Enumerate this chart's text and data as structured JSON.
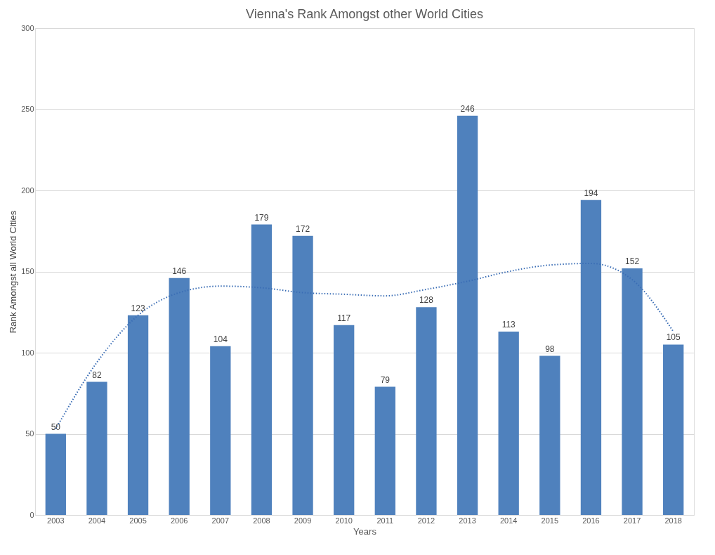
{
  "chart_data": {
    "type": "bar",
    "title": "Vienna's Rank Amongst other World Cities",
    "xlabel": "Years",
    "ylabel": "Rank Amongst all World Cities",
    "categories": [
      "2003",
      "2004",
      "2005",
      "2006",
      "2007",
      "2008",
      "2009",
      "2010",
      "2011",
      "2012",
      "2013",
      "2014",
      "2015",
      "2016",
      "2017",
      "2018"
    ],
    "series": [
      {
        "color": "#4f81bd",
        "values": [
          50,
          82,
          123,
          146,
          104,
          179,
          172,
          117,
          79,
          128,
          246,
          113,
          98,
          194,
          152,
          105
        ],
        "value_labels": [
          "50",
          "82",
          "123",
          "146",
          "104",
          "179",
          "172",
          "117",
          "79",
          "128",
          "246",
          "113",
          "98",
          "194",
          "152",
          "105"
        ]
      },
      {
        "type": "line",
        "color": "#3a6db5",
        "line_style": "dotted",
        "marker": "none",
        "values": [
          53,
          94,
          123,
          137,
          141,
          140,
          137,
          136,
          135,
          139,
          144,
          150,
          154,
          155,
          145,
          113
        ]
      }
    ],
    "ylim": [
      0,
      300
    ],
    "yticks": [
      0,
      50,
      100,
      150,
      200,
      250,
      300
    ],
    "grid": "y"
  }
}
